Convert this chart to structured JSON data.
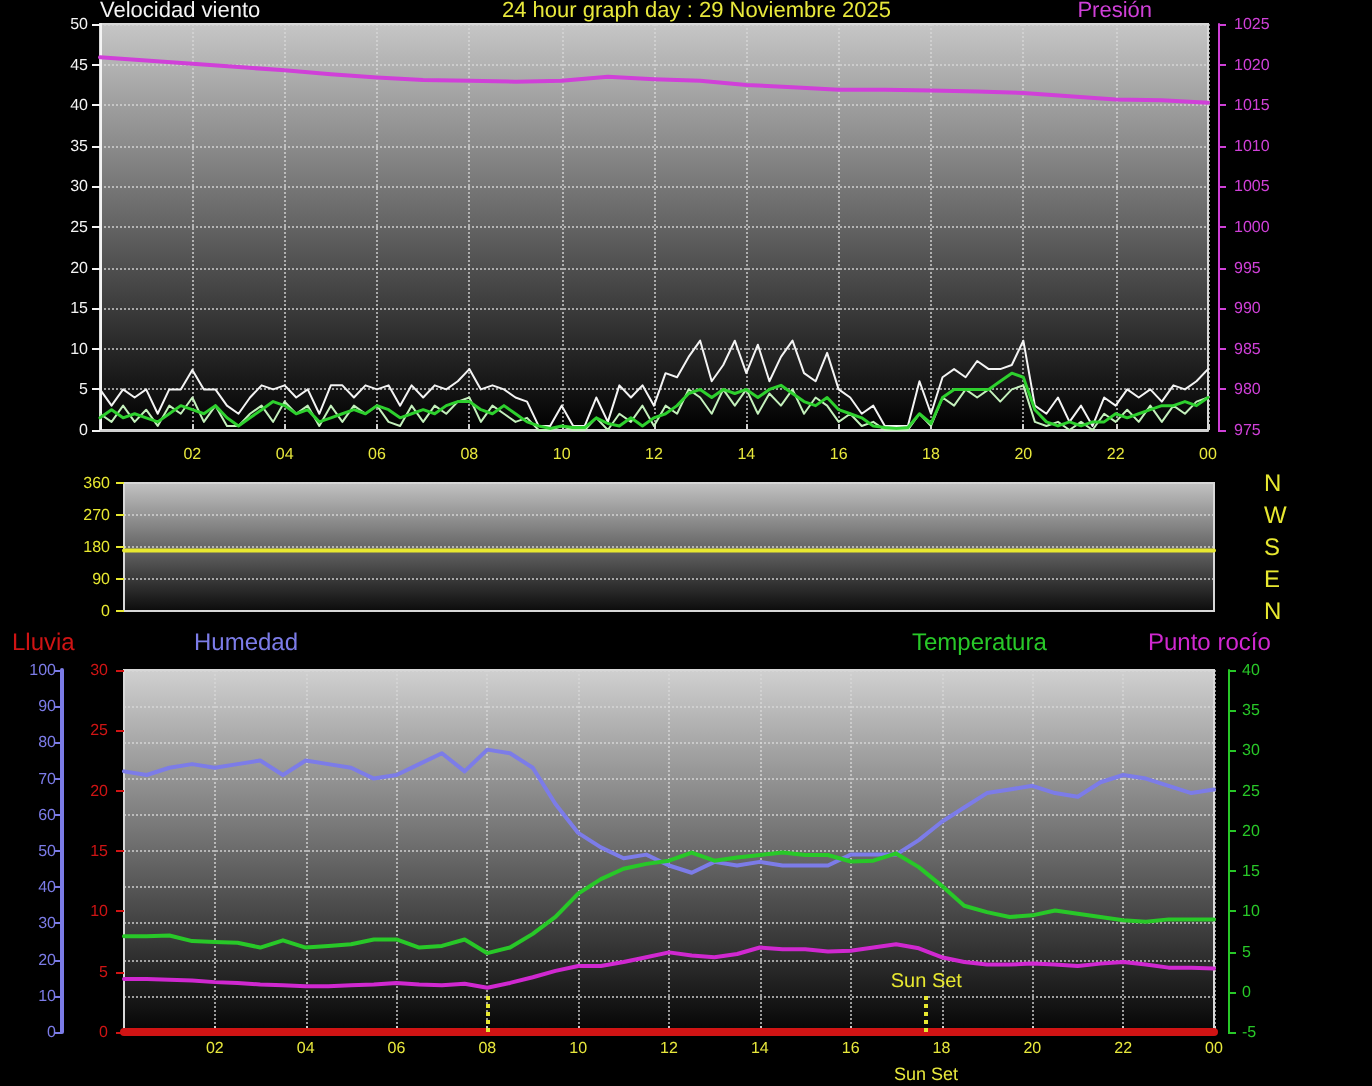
{
  "chart_data": [
    {
      "type": "line",
      "title": "24 hour graph day : 29 Noviembre 2025",
      "ylabel": "Velocidad viento",
      "y2label": "Presión",
      "xlim": [
        "2025-11-29T00:00",
        "2025-11-30T00:00"
      ],
      "xticks": [
        {
          "value": "2025-11-29T02:00",
          "label": "02"
        },
        {
          "value": "2025-11-29T04:00",
          "label": "04"
        },
        {
          "value": "2025-11-29T06:00",
          "label": "06"
        },
        {
          "value": "2025-11-29T08:00",
          "label": "08"
        },
        {
          "value": "2025-11-29T10:00",
          "label": "10"
        },
        {
          "value": "2025-11-29T12:00",
          "label": "12"
        },
        {
          "value": "2025-11-29T14:00",
          "label": "14"
        },
        {
          "value": "2025-11-29T16:00",
          "label": "16"
        },
        {
          "value": "2025-11-29T18:00",
          "label": "18"
        },
        {
          "value": "2025-11-29T20:00",
          "label": "20"
        },
        {
          "value": "2025-11-29T22:00",
          "label": "22"
        },
        {
          "value": "2025-11-30T00:00",
          "label": "00"
        }
      ],
      "ylim": [
        0,
        50
      ],
      "yticks": [
        0,
        5,
        10,
        15,
        20,
        25,
        30,
        35,
        40,
        45,
        50
      ],
      "y2lim": [
        975,
        1025
      ],
      "y2ticks": [
        975,
        980,
        985,
        990,
        995,
        1000,
        1005,
        1010,
        1015,
        1020,
        1025
      ],
      "grid": true,
      "marker": "none",
      "x": [
        "2025-11-29T00:00",
        "2025-11-29T00:15",
        "2025-11-29T00:30",
        "2025-11-29T00:45",
        "2025-11-29T01:00",
        "2025-11-29T01:15",
        "2025-11-29T01:30",
        "2025-11-29T01:45",
        "2025-11-29T02:00",
        "2025-11-29T02:15",
        "2025-11-29T02:30",
        "2025-11-29T02:45",
        "2025-11-29T03:00",
        "2025-11-29T03:15",
        "2025-11-29T03:30",
        "2025-11-29T03:45",
        "2025-11-29T04:00",
        "2025-11-29T04:15",
        "2025-11-29T04:30",
        "2025-11-29T04:45",
        "2025-11-29T05:00",
        "2025-11-29T05:15",
        "2025-11-29T05:30",
        "2025-11-29T05:45",
        "2025-11-29T06:00",
        "2025-11-29T06:15",
        "2025-11-29T06:30",
        "2025-11-29T06:45",
        "2025-11-29T07:00",
        "2025-11-29T07:15",
        "2025-11-29T07:30",
        "2025-11-29T07:45",
        "2025-11-29T08:00",
        "2025-11-29T08:15",
        "2025-11-29T08:30",
        "2025-11-29T08:45",
        "2025-11-29T09:00",
        "2025-11-29T09:15",
        "2025-11-29T09:30",
        "2025-11-29T09:45",
        "2025-11-29T10:00",
        "2025-11-29T10:15",
        "2025-11-29T10:30",
        "2025-11-29T10:45",
        "2025-11-29T11:00",
        "2025-11-29T11:15",
        "2025-11-29T11:30",
        "2025-11-29T11:45",
        "2025-11-29T12:00",
        "2025-11-29T12:15",
        "2025-11-29T12:30",
        "2025-11-29T12:45",
        "2025-11-29T13:00",
        "2025-11-29T13:15",
        "2025-11-29T13:30",
        "2025-11-29T13:45",
        "2025-11-29T14:00",
        "2025-11-29T14:15",
        "2025-11-29T14:30",
        "2025-11-29T14:45",
        "2025-11-29T15:00",
        "2025-11-29T15:15",
        "2025-11-29T15:30",
        "2025-11-29T15:45",
        "2025-11-29T16:00",
        "2025-11-29T16:15",
        "2025-11-29T16:30",
        "2025-11-29T16:45",
        "2025-11-29T17:00",
        "2025-11-29T17:15",
        "2025-11-29T17:30",
        "2025-11-29T17:45",
        "2025-11-29T18:00",
        "2025-11-29T18:15",
        "2025-11-29T18:30",
        "2025-11-29T18:45",
        "2025-11-29T19:00",
        "2025-11-29T19:15",
        "2025-11-29T19:30",
        "2025-11-29T19:45",
        "2025-11-29T20:00",
        "2025-11-29T20:15",
        "2025-11-29T20:30",
        "2025-11-29T20:45",
        "2025-11-29T21:00",
        "2025-11-29T21:15",
        "2025-11-29T21:30",
        "2025-11-29T21:45",
        "2025-11-29T22:00",
        "2025-11-29T22:15",
        "2025-11-29T22:30",
        "2025-11-29T22:45",
        "2025-11-29T23:00",
        "2025-11-29T23:15",
        "2025-11-29T23:30",
        "2025-11-29T23:45",
        "2025-11-30T00:00"
      ],
      "series": [
        {
          "color": "#f4f4f4",
          "values": [
            5,
            3,
            5,
            4,
            5,
            2,
            5,
            5,
            7.4,
            5,
            5,
            3,
            2,
            4,
            5.5,
            5,
            5.5,
            4,
            5,
            2,
            5.5,
            5.5,
            4,
            5.5,
            5,
            5.5,
            3,
            5.5,
            4,
            5.5,
            5,
            6,
            7.5,
            5,
            5.5,
            5,
            4,
            3.5,
            0.5,
            0.5,
            3,
            0.5,
            0.5,
            4,
            1,
            5.5,
            4,
            5.5,
            3,
            7,
            6.5,
            9,
            11,
            6,
            8,
            11,
            7,
            10.5,
            6,
            9,
            11,
            7,
            6,
            9.5,
            5,
            4,
            2,
            3,
            0.5,
            0.5,
            0.5,
            6,
            2,
            6.5,
            7.5,
            6.5,
            8.5,
            7.5,
            7.5,
            8,
            11,
            3,
            2,
            4,
            1,
            3,
            0.5,
            4,
            3,
            5,
            4,
            5,
            3.5,
            5.5,
            5,
            6,
            7.5
          ]
        },
        {
          "color": "#c4f0bc",
          "values": [
            2,
            1,
            3,
            1,
            2.5,
            0.5,
            3,
            2,
            4,
            1,
            3,
            0.5,
            0.5,
            2,
            3,
            1,
            3.5,
            2,
            3,
            0.5,
            3,
            1,
            3,
            2,
            3,
            1,
            0.5,
            3,
            1,
            3,
            2,
            3.5,
            4,
            1,
            3,
            2,
            1,
            1.5,
            0,
            0,
            0.5,
            0,
            0,
            1.5,
            0,
            2,
            1,
            3,
            0.5,
            3,
            2,
            5,
            4,
            2,
            5,
            3,
            5,
            2,
            4.5,
            3,
            5,
            2,
            4,
            3,
            1,
            2,
            0.5,
            1,
            0,
            0,
            0,
            2,
            0.5,
            4,
            3,
            5,
            4,
            5,
            3.5,
            5,
            5.5,
            1,
            0.5,
            1,
            0,
            1,
            0,
            2,
            1,
            2.5,
            1,
            3,
            1,
            3,
            2,
            3.5,
            4
          ]
        },
        {
          "color": "#2ed02e",
          "values": [
            1.5,
            2.5,
            1.5,
            2,
            1.5,
            1,
            2,
            3,
            2.5,
            2,
            3,
            1.5,
            0.5,
            1.5,
            2.5,
            3.5,
            3,
            2,
            2.5,
            1,
            1.5,
            2,
            2.5,
            2,
            3,
            2.5,
            1.5,
            2,
            2.5,
            2,
            3,
            3.5,
            3.5,
            2.5,
            2,
            3,
            2,
            1,
            0.5,
            0.2,
            0.5,
            0.3,
            0.3,
            1.5,
            0.8,
            0.5,
            1.5,
            0.5,
            1.5,
            2,
            3,
            4.5,
            5,
            4,
            5,
            4.5,
            5,
            4,
            5,
            5.5,
            4.5,
            3.5,
            3,
            4,
            2.5,
            2,
            1.5,
            0.5,
            0.3,
            0.2,
            0.3,
            2,
            0.8,
            4,
            5,
            5,
            5,
            5,
            6,
            7,
            6.5,
            2.5,
            1,
            0.5,
            1,
            0.5,
            1,
            1,
            2,
            1.5,
            2,
            2.5,
            3,
            3,
            3.5,
            3,
            4
          ]
        },
        {
          "color": "#d040d8",
          "axis": "y2",
          "x": [
            "2025-11-29T00:00",
            "2025-11-29T01:00",
            "2025-11-29T02:00",
            "2025-11-29T03:00",
            "2025-11-29T04:00",
            "2025-11-29T05:00",
            "2025-11-29T06:00",
            "2025-11-29T07:00",
            "2025-11-29T08:00",
            "2025-11-29T09:00",
            "2025-11-29T10:00",
            "2025-11-29T11:00",
            "2025-11-29T12:00",
            "2025-11-29T13:00",
            "2025-11-29T14:00",
            "2025-11-29T15:00",
            "2025-11-29T16:00",
            "2025-11-29T17:00",
            "2025-11-29T18:00",
            "2025-11-29T19:00",
            "2025-11-29T20:00",
            "2025-11-29T21:00",
            "2025-11-29T22:00",
            "2025-11-29T23:00",
            "2025-11-30T00:00"
          ],
          "values": [
            1020.9,
            1020.5,
            1020.1,
            1019.7,
            1019.3,
            1018.8,
            1018.4,
            1018.1,
            1018.0,
            1017.9,
            1018.0,
            1018.5,
            1018.2,
            1018.0,
            1017.5,
            1017.2,
            1016.9,
            1016.9,
            1016.8,
            1016.7,
            1016.5,
            1016.1,
            1015.7,
            1015.6,
            1015.3
          ]
        }
      ]
    },
    {
      "type": "line",
      "xlim": [
        "2025-11-29T00:00",
        "2025-11-30T00:00"
      ],
      "ylim": [
        0,
        360
      ],
      "yticks": [
        0,
        90,
        180,
        270,
        360
      ],
      "y2_categories": [
        "N",
        "W",
        "S",
        "E",
        "N"
      ],
      "tick_labels": "y",
      "grid": "y",
      "marker": "none",
      "series": [
        {
          "color": "#e8e830",
          "x": [
            "2025-11-29T00:00",
            "2025-11-30T00:00"
          ],
          "values": [
            170,
            170
          ]
        }
      ]
    },
    {
      "type": "line",
      "xlim": [
        "2025-11-29T00:00",
        "2025-11-30T00:00"
      ],
      "xticks": [
        {
          "value": "2025-11-29T02:00",
          "label": "02"
        },
        {
          "value": "2025-11-29T04:00",
          "label": "04"
        },
        {
          "value": "2025-11-29T06:00",
          "label": "06"
        },
        {
          "value": "2025-11-29T08:00",
          "label": "08"
        },
        {
          "value": "2025-11-29T10:00",
          "label": "10"
        },
        {
          "value": "2025-11-29T12:00",
          "label": "12"
        },
        {
          "value": "2025-11-29T14:00",
          "label": "14"
        },
        {
          "value": "2025-11-29T16:00",
          "label": "16"
        },
        {
          "value": "2025-11-29T18:00",
          "label": "18"
        },
        {
          "value": "2025-11-29T20:00",
          "label": "20"
        },
        {
          "value": "2025-11-29T22:00",
          "label": "22"
        },
        {
          "value": "2025-11-30T00:00",
          "label": "00"
        }
      ],
      "ylim": [
        0,
        100
      ],
      "yticks": [
        0,
        10,
        20,
        30,
        40,
        50,
        60,
        70,
        80,
        90,
        100
      ],
      "y2lim": [
        0,
        30
      ],
      "y2ticks": [
        0,
        5,
        10,
        15,
        20,
        25,
        30
      ],
      "y3lim": [
        -5,
        40
      ],
      "y3ticks": [
        -5,
        0,
        5,
        10,
        15,
        20,
        25,
        30,
        35,
        40
      ],
      "grid": true,
      "legend": "top",
      "marker": "none",
      "x": [
        "2025-11-29T00:00",
        "2025-11-29T00:30",
        "2025-11-29T01:00",
        "2025-11-29T01:30",
        "2025-11-29T02:00",
        "2025-11-29T02:30",
        "2025-11-29T03:00",
        "2025-11-29T03:30",
        "2025-11-29T04:00",
        "2025-11-29T04:30",
        "2025-11-29T05:00",
        "2025-11-29T05:30",
        "2025-11-29T06:00",
        "2025-11-29T06:30",
        "2025-11-29T07:00",
        "2025-11-29T07:30",
        "2025-11-29T08:00",
        "2025-11-29T08:30",
        "2025-11-29T09:00",
        "2025-11-29T09:30",
        "2025-11-29T10:00",
        "2025-11-29T10:30",
        "2025-11-29T11:00",
        "2025-11-29T11:30",
        "2025-11-29T12:00",
        "2025-11-29T12:30",
        "2025-11-29T13:00",
        "2025-11-29T13:30",
        "2025-11-29T14:00",
        "2025-11-29T14:30",
        "2025-11-29T15:00",
        "2025-11-29T15:30",
        "2025-11-29T16:00",
        "2025-11-29T16:30",
        "2025-11-29T17:00",
        "2025-11-29T17:30",
        "2025-11-29T18:00",
        "2025-11-29T18:30",
        "2025-11-29T19:00",
        "2025-11-29T19:30",
        "2025-11-29T20:00",
        "2025-11-29T20:30",
        "2025-11-29T21:00",
        "2025-11-29T21:30",
        "2025-11-29T22:00",
        "2025-11-29T22:30",
        "2025-11-29T23:00",
        "2025-11-29T23:30",
        "2025-11-30T00:00"
      ],
      "series": [
        {
          "name": "Lluvia",
          "color": "#d01414",
          "axis": "y2",
          "x": [
            "2025-11-29T00:00",
            "2025-11-30T00:00"
          ],
          "values": [
            0,
            0
          ]
        },
        {
          "name": "Humedad",
          "color": "#7c7ce8",
          "values": [
            72,
            71,
            73,
            74,
            73,
            74,
            75,
            71,
            75,
            74,
            73,
            70,
            71,
            74,
            77,
            72,
            78,
            77,
            73,
            63,
            55,
            51,
            48,
            49,
            46,
            44,
            47,
            46,
            47,
            46,
            46,
            46,
            49,
            49,
            49,
            53,
            58,
            62,
            66,
            67,
            68,
            66,
            65,
            69,
            71,
            70,
            68,
            66,
            67
          ]
        },
        {
          "name": "Temperatura",
          "color": "#28c828",
          "axis": "y3",
          "values": [
            6.9,
            6.9,
            7.0,
            6.3,
            6.2,
            6.1,
            5.5,
            6.4,
            5.5,
            5.7,
            5.9,
            6.5,
            6.5,
            5.5,
            5.7,
            6.5,
            4.8,
            5.5,
            7.2,
            9.3,
            12.2,
            14.0,
            15.3,
            15.9,
            16.3,
            17.3,
            16.3,
            16.7,
            17.0,
            17.3,
            17.0,
            17.0,
            16.2,
            16.3,
            17.2,
            15.5,
            13.2,
            10.7,
            9.9,
            9.3,
            9.5,
            10.1,
            9.7,
            9.3,
            8.9,
            8.7,
            9.0,
            9.0,
            9.0
          ]
        },
        {
          "name": "Punto rocío",
          "color": "#d028d0",
          "axis": "y3",
          "values": [
            1.6,
            1.6,
            1.5,
            1.4,
            1.2,
            1.1,
            0.9,
            0.8,
            0.7,
            0.7,
            0.8,
            0.9,
            1.1,
            0.9,
            0.8,
            1.0,
            0.5,
            1.1,
            1.8,
            2.6,
            3.2,
            3.2,
            3.7,
            4.3,
            4.9,
            4.5,
            4.3,
            4.7,
            5.5,
            5.3,
            5.3,
            5.0,
            5.1,
            5.5,
            5.9,
            5.4,
            4.3,
            3.7,
            3.4,
            3.4,
            3.5,
            3.4,
            3.2,
            3.5,
            3.7,
            3.4,
            3.0,
            3.0,
            2.9
          ]
        }
      ],
      "ref_lines": [
        {
          "axis": "x",
          "value": "2025-11-29T08:00",
          "color": "#e8e830",
          "line_style": "dotted"
        },
        {
          "axis": "x",
          "value": "2025-11-29T17:40",
          "label": "Sun Set",
          "color": "#e8e830",
          "line_style": "dotted"
        }
      ],
      "annotations": [
        "Sun Set"
      ]
    }
  ]
}
